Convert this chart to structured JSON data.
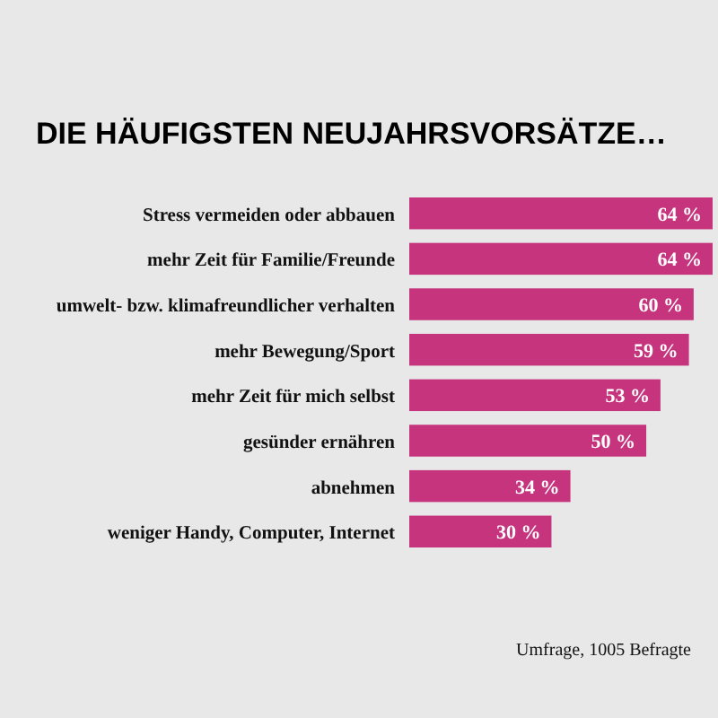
{
  "chart_data": {
    "type": "bar",
    "orientation": "horizontal",
    "title": "DIE HÄUFIGSTEN NEUJAHRSVORSÄTZE…",
    "categories": [
      "Stress vermeiden oder abbauen",
      "mehr Zeit für Familie/Freunde",
      "umwelt- bzw. klimafreundlicher verhalten",
      "mehr Bewegung/Sport",
      "mehr Zeit für mich selbst",
      "gesünder ernähren",
      "abnehmen",
      "weniger Handy, Computer, Internet"
    ],
    "values": [
      64,
      64,
      60,
      59,
      53,
      50,
      34,
      30
    ],
    "value_labels": [
      "64 %",
      "64 %",
      "60 %",
      "59 %",
      "53 %",
      "50 %",
      "34 %",
      "30 %"
    ],
    "color": "#c6347d",
    "annotations": [
      "Umfrage, 1005 Befragte"
    ]
  }
}
